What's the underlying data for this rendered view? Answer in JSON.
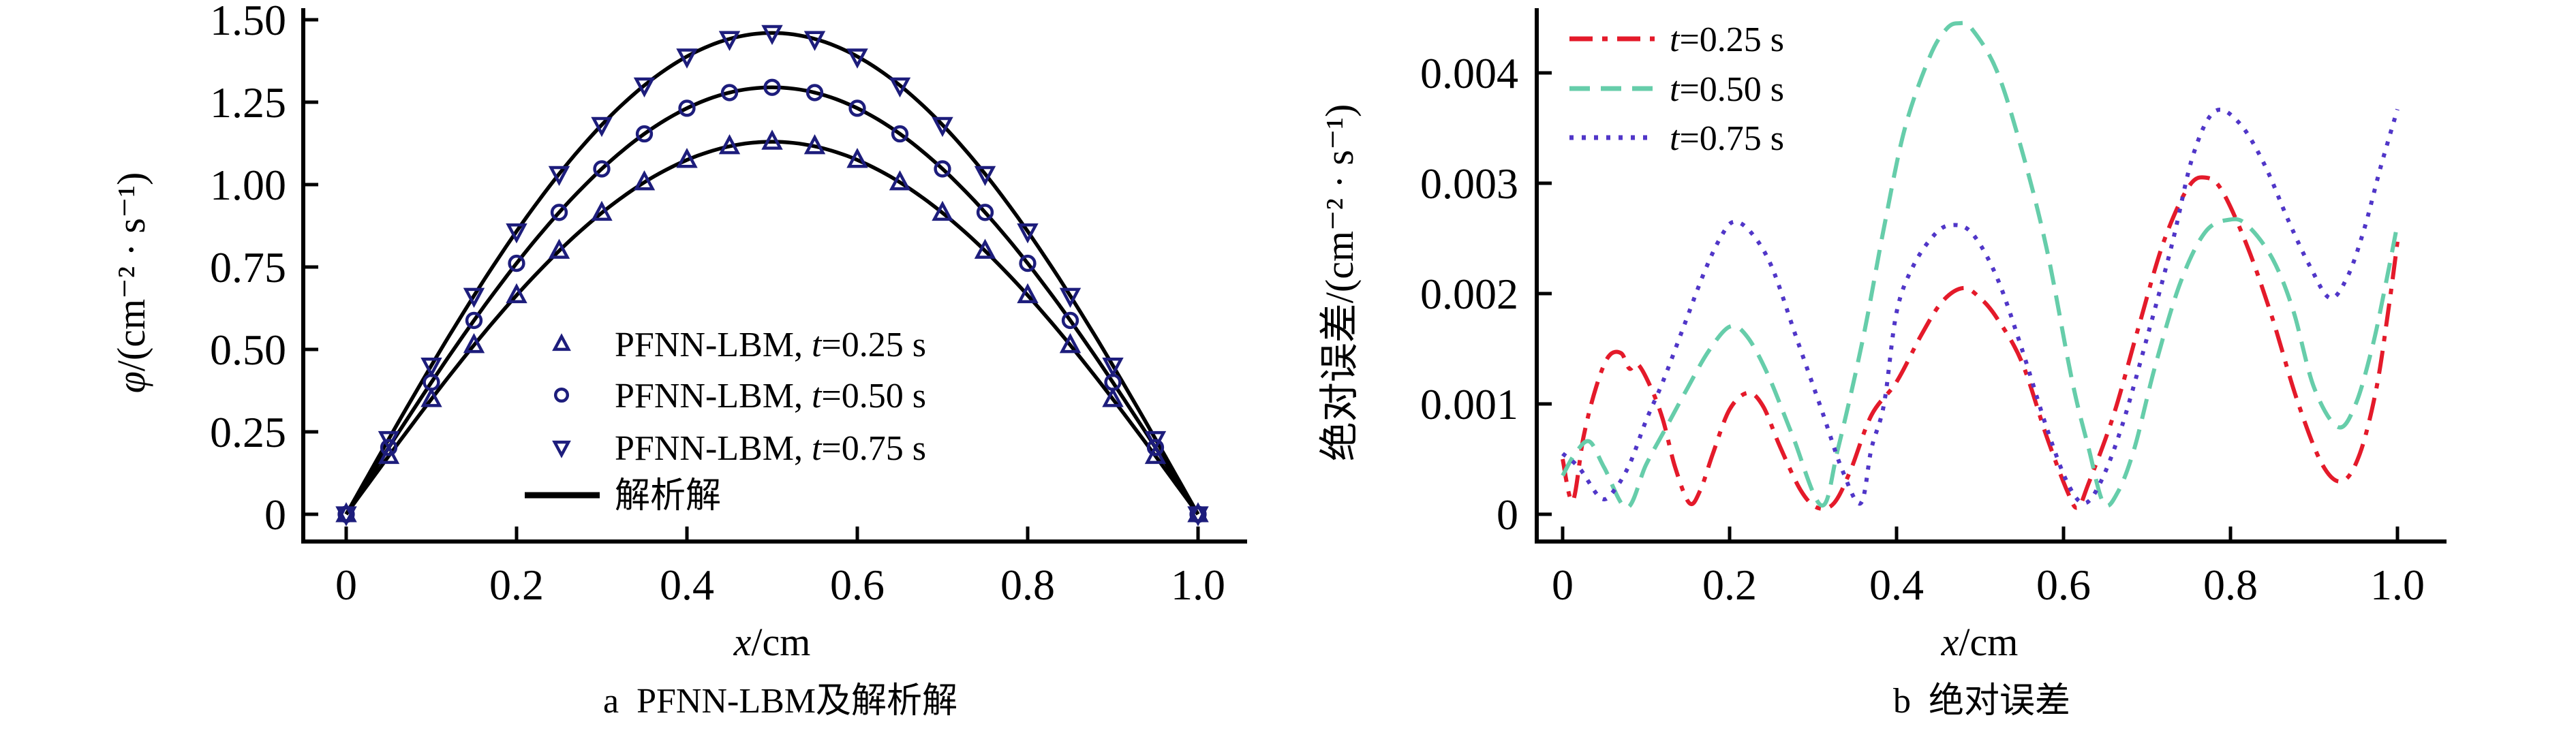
{
  "figure": {
    "background": "#ffffff",
    "text_color": "#000000",
    "marker_color": "#1d1d7c",
    "analytic_line_color": "#000000"
  },
  "chart_data": [
    {
      "id": "a",
      "type": "line",
      "caption_tag": "a",
      "caption": "PFNN-LBM及解析解",
      "xlabel_var": "x",
      "xlabel_rest": "/cm",
      "ylabel_var": "φ",
      "ylabel_rest": "/(cm⁻² · s⁻¹)",
      "xlim": [
        0,
        1.0
      ],
      "ylim": [
        0,
        1.5
      ],
      "grid": false,
      "legend_position": "inside-center-bottom",
      "x_tick_labels": [
        "0",
        "0.2",
        "0.4",
        "0.6",
        "0.8",
        "1.0"
      ],
      "x_tick_values": [
        0,
        0.2,
        0.4,
        0.6,
        0.8,
        1.0
      ],
      "y_tick_labels": [
        "0",
        "0.25",
        "0.50",
        "0.75",
        "1.00",
        "1.25",
        "1.50"
      ],
      "y_tick_values": [
        0,
        0.25,
        0.5,
        0.75,
        1.0,
        1.25,
        1.5
      ],
      "analytic_legend_label": "解析解",
      "series": [
        {
          "name_pre": "PFNN-LBM, ",
          "name_var": "t",
          "name_rest": "=0.25 s",
          "marker": "triangle-up",
          "amplitude": 1.13,
          "x": [
            0,
            0.05,
            0.1,
            0.15,
            0.2,
            0.25,
            0.3,
            0.35,
            0.4,
            0.45,
            0.5,
            0.55,
            0.6,
            0.65,
            0.7,
            0.75,
            0.8,
            0.85,
            0.9,
            0.95,
            1.0
          ],
          "y": [
            0,
            0.1767,
            0.3492,
            0.513,
            0.6642,
            0.799,
            0.9142,
            1.0068,
            1.0747,
            1.1161,
            1.13,
            1.1161,
            1.0747,
            1.0068,
            0.9142,
            0.799,
            0.6642,
            0.513,
            0.3492,
            0.1767,
            0
          ]
        },
        {
          "name_pre": "PFNN-LBM, ",
          "name_var": "t",
          "name_rest": "=0.50 s",
          "marker": "circle",
          "amplitude": 1.295,
          "x": [
            0,
            0.05,
            0.1,
            0.15,
            0.2,
            0.25,
            0.3,
            0.35,
            0.4,
            0.45,
            0.5,
            0.55,
            0.6,
            0.65,
            0.7,
            0.75,
            0.8,
            0.85,
            0.9,
            0.95,
            1.0
          ],
          "y": [
            0,
            0.2025,
            0.4002,
            0.5879,
            0.7612,
            0.9157,
            1.0477,
            1.1539,
            1.2316,
            1.2791,
            1.295,
            1.2791,
            1.2316,
            1.1539,
            1.0477,
            0.9157,
            0.7612,
            0.5879,
            0.4002,
            0.2025,
            0
          ]
        },
        {
          "name_pre": "PFNN-LBM, ",
          "name_var": "t",
          "name_rest": "=0.75 s",
          "marker": "triangle-down",
          "amplitude": 1.46,
          "x": [
            0,
            0.05,
            0.1,
            0.15,
            0.2,
            0.25,
            0.3,
            0.35,
            0.4,
            0.45,
            0.5,
            0.55,
            0.6,
            0.65,
            0.7,
            0.75,
            0.8,
            0.85,
            0.9,
            0.95,
            1.0
          ],
          "y": [
            0,
            0.2283,
            0.4511,
            0.6628,
            0.8582,
            1.0324,
            1.1812,
            1.3009,
            1.3886,
            1.442,
            1.46,
            1.442,
            1.3886,
            1.3009,
            1.1812,
            1.0324,
            0.8582,
            0.6628,
            0.4511,
            0.2283,
            0
          ]
        }
      ]
    },
    {
      "id": "b",
      "type": "line",
      "caption_tag": "b",
      "caption": "绝对误差",
      "xlabel_var": "x",
      "xlabel_rest": "/cm",
      "ylabel_pre": "绝对误差",
      "ylabel_rest": "/(cm⁻² · s⁻¹)",
      "xlim": [
        0,
        1.0
      ],
      "ylim": [
        0,
        0.0045
      ],
      "grid": false,
      "legend_position": "inside-top-left",
      "x_tick_labels": [
        "0",
        "0.2",
        "0.4",
        "0.6",
        "0.8",
        "1.0"
      ],
      "x_tick_values": [
        0,
        0.2,
        0.4,
        0.6,
        0.8,
        1.0
      ],
      "y_tick_labels": [
        "0",
        "0.001",
        "0.002",
        "0.003",
        "0.004"
      ],
      "y_tick_values": [
        0,
        0.001,
        0.002,
        0.003,
        0.004
      ],
      "series": [
        {
          "name_var": "t",
          "name_rest": "=0.25 s",
          "color": "#e41a2a",
          "dash": "dashdot",
          "x": [
            0,
            0.012,
            0.025,
            0.04,
            0.055,
            0.07,
            0.08,
            0.09,
            0.105,
            0.12,
            0.135,
            0.152,
            0.165,
            0.18,
            0.2,
            0.222,
            0.24,
            0.26,
            0.285,
            0.305,
            0.325,
            0.345,
            0.37,
            0.4,
            0.43,
            0.455,
            0.48,
            0.5,
            0.52,
            0.55,
            0.58,
            0.605,
            0.617,
            0.63,
            0.66,
            0.69,
            0.72,
            0.75,
            0.771,
            0.79,
            0.82,
            0.85,
            0.88,
            0.91,
            0.934,
            0.955,
            0.975,
            0.99,
            1.0
          ],
          "y": [
            0.0005,
            0.00012,
            0.0007,
            0.00115,
            0.00143,
            0.00146,
            0.00132,
            0.00136,
            0.00116,
            0.00086,
            0.00042,
            0.0001,
            0.00022,
            0.00055,
            0.00095,
            0.0011,
            0.00098,
            0.00062,
            0.00022,
            6e-05,
            0.0001,
            0.0004,
            0.0009,
            0.0012,
            0.00163,
            0.00193,
            0.00205,
            0.00196,
            0.00178,
            0.00138,
            0.0007,
            0.0002,
            6e-05,
            0.00028,
            0.0009,
            0.0017,
            0.00247,
            0.00297,
            0.00305,
            0.00293,
            0.00243,
            0.00178,
            0.00103,
            0.00045,
            0.0003,
            0.00055,
            0.00115,
            0.0019,
            0.00247
          ]
        },
        {
          "name_var": "t",
          "name_rest": "=0.50 s",
          "color": "#66cdaa",
          "dash": "dashed",
          "x": [
            0,
            0.015,
            0.032,
            0.05,
            0.077,
            0.1,
            0.125,
            0.15,
            0.175,
            0.2,
            0.22,
            0.245,
            0.275,
            0.31,
            0.33,
            0.36,
            0.385,
            0.41,
            0.44,
            0.46,
            0.475,
            0.49,
            0.52,
            0.55,
            0.58,
            0.61,
            0.63,
            0.648,
            0.665,
            0.685,
            0.71,
            0.74,
            0.77,
            0.799,
            0.82,
            0.85,
            0.875,
            0.9,
            0.929,
            0.95,
            0.97,
            0.985,
            1.0
          ],
          "y": [
            0.00035,
            0.00055,
            0.00066,
            0.00042,
            6e-05,
            0.00045,
            0.0008,
            0.00115,
            0.00148,
            0.0017,
            0.00162,
            0.00128,
            0.00072,
            8e-05,
            0.0006,
            0.0016,
            0.0026,
            0.0035,
            0.00415,
            0.0044,
            0.00445,
            0.0044,
            0.00402,
            0.0033,
            0.0024,
            0.00122,
            0.0006,
            0.0001,
            0.0002,
            0.0006,
            0.00135,
            0.0021,
            0.00256,
            0.00267,
            0.00262,
            0.00232,
            0.00185,
            0.00115,
            0.00079,
            0.001,
            0.00152,
            0.00205,
            0.00263
          ]
        },
        {
          "name_var": "t",
          "name_rest": "=0.75 s",
          "color": "#5036c8",
          "dash": "dotted",
          "x": [
            0,
            0.02,
            0.045,
            0.06,
            0.08,
            0.1,
            0.12,
            0.145,
            0.17,
            0.19,
            0.205,
            0.225,
            0.25,
            0.28,
            0.31,
            0.335,
            0.357,
            0.37,
            0.385,
            0.4,
            0.42,
            0.445,
            0.465,
            0.49,
            0.52,
            0.55,
            0.58,
            0.605,
            0.625,
            0.645,
            0.67,
            0.7,
            0.73,
            0.755,
            0.781,
            0.81,
            0.84,
            0.87,
            0.895,
            0.919,
            0.94,
            0.96,
            0.98,
            1.0
          ],
          "y": [
            0.00055,
            0.00042,
            0.00015,
            0.0002,
            0.00045,
            0.00085,
            0.0012,
            0.0017,
            0.0022,
            0.00252,
            0.00265,
            0.00256,
            0.00225,
            0.0016,
            0.00095,
            0.0004,
            0.0001,
            0.0006,
            0.001,
            0.00183,
            0.00225,
            0.00253,
            0.00262,
            0.00255,
            0.00215,
            0.0015,
            0.00078,
            0.00028,
            0.0001,
            0.0003,
            0.0008,
            0.0016,
            0.00245,
            0.00325,
            0.00365,
            0.00355,
            0.00318,
            0.00265,
            0.00225,
            0.00196,
            0.00215,
            0.00258,
            0.00315,
            0.00367
          ]
        }
      ]
    }
  ]
}
